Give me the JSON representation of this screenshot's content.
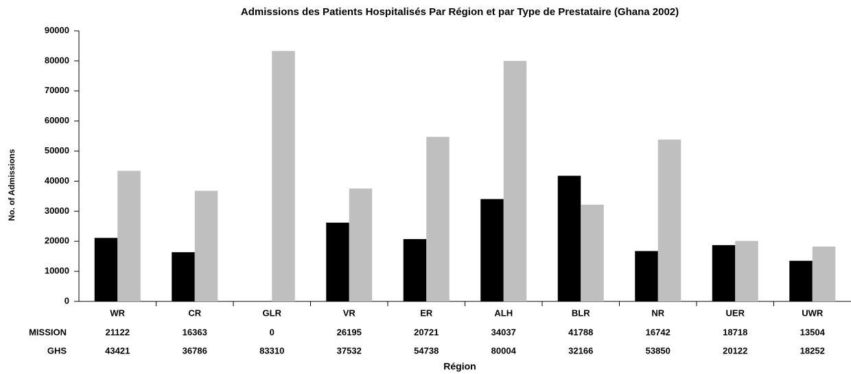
{
  "chart_data": {
    "type": "bar",
    "title": "Admissions des Patients Hospitalisés Par Région et par Type de Prestataire (Ghana 2002)",
    "x_label": "Région",
    "y_label": "No. of Admissions",
    "categories": [
      "WR",
      "CR",
      "GLR",
      "VR",
      "ER",
      "ALH",
      "BLR",
      "NR",
      "UER",
      "UWR"
    ],
    "series": [
      {
        "name": "MISSION",
        "color": "#000000",
        "values": [
          21122,
          16363,
          0,
          26195,
          20721,
          34037,
          41788,
          16742,
          18718,
          13504
        ]
      },
      {
        "name": "GHS",
        "color": "#bfbfbf",
        "values": [
          43421,
          36786,
          83310,
          37532,
          54738,
          80004,
          32166,
          53850,
          20122,
          18252
        ]
      }
    ],
    "ylim": [
      0,
      90000
    ],
    "yticks": [
      0,
      10000,
      20000,
      30000,
      40000,
      50000,
      60000,
      70000,
      80000,
      90000
    ],
    "grid": false
  }
}
